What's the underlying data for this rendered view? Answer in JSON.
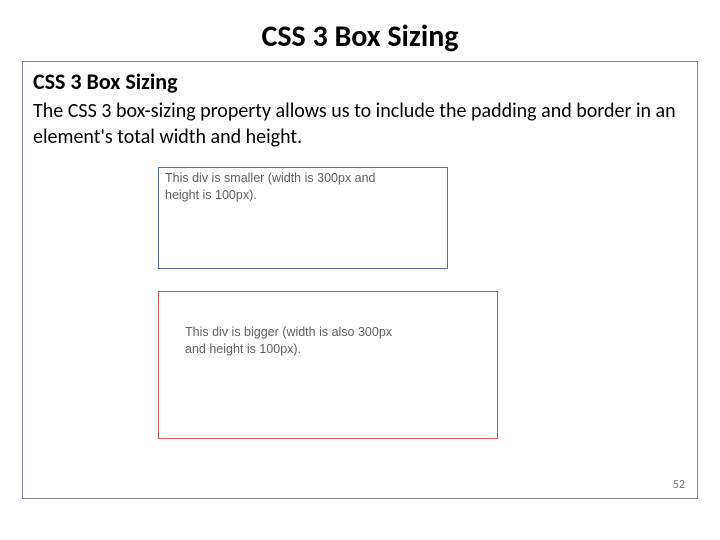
{
  "slide": {
    "title": "CSS 3 Box Sizing",
    "page_number": "52",
    "colors": {
      "frame_border": "#8a8a9a",
      "box1_border": "#5c6ab5",
      "box2_border": "#d45a5a",
      "text_color": "#000000",
      "box_text_color": "#606060",
      "page_num_color": "#7a7a7a"
    }
  },
  "content": {
    "heading": "CSS 3 Box Sizing",
    "paragraph": "The CSS 3 box-sizing property allows us to include the padding and border in an element's total width and height.",
    "box1_text_line1": "This div is smaller (width is 300px and",
    "box1_text_line2": "height is 100px).",
    "box2_text_line1": "This div is bigger (width is also 300px",
    "box2_text_line2": "and height is 100px)."
  }
}
